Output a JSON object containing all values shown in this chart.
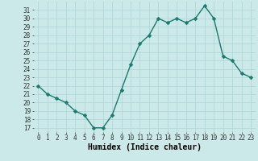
{
  "x": [
    0,
    1,
    2,
    3,
    4,
    5,
    6,
    7,
    8,
    9,
    10,
    11,
    12,
    13,
    14,
    15,
    16,
    17,
    18,
    19,
    20,
    21,
    22,
    23
  ],
  "y": [
    22,
    21,
    20.5,
    20,
    19,
    18.5,
    17,
    17,
    18.5,
    21.5,
    24.5,
    27,
    28,
    30,
    29.5,
    30,
    29.5,
    30,
    31.5,
    30,
    25.5,
    25,
    23.5,
    23
  ],
  "line_color": "#1a7a6e",
  "marker_color": "#1a7a6e",
  "bg_color": "#cce9e9",
  "grid_color": "#aad4d4",
  "xlabel": "Humidex (Indice chaleur)",
  "xlim": [
    -0.5,
    23.5
  ],
  "ylim": [
    16.5,
    32
  ],
  "yticks": [
    17,
    18,
    19,
    20,
    21,
    22,
    23,
    24,
    25,
    26,
    27,
    28,
    29,
    30,
    31
  ],
  "xticks": [
    0,
    1,
    2,
    3,
    4,
    5,
    6,
    7,
    8,
    9,
    10,
    11,
    12,
    13,
    14,
    15,
    16,
    17,
    18,
    19,
    20,
    21,
    22,
    23
  ],
  "tick_fontsize": 5.5,
  "xlabel_fontsize": 7,
  "linewidth": 1.0,
  "markersize": 2.5
}
